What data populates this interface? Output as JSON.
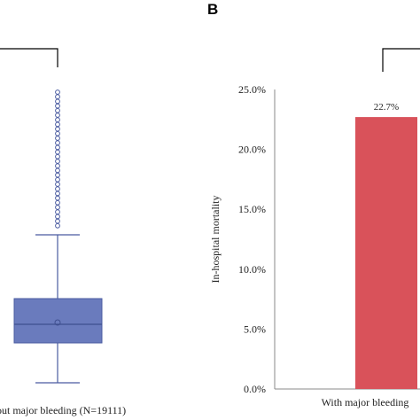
{
  "panel_label_b": "B",
  "chart_data": [
    {
      "type": "box",
      "categories": [
        "out major bleeding (N=19111)"
      ],
      "box": {
        "color": "#6a7bbd",
        "edge_color": "#4a5ba0"
      }
    },
    {
      "type": "bar",
      "ylabel": "In-hospital mortality",
      "yticks": [
        "0.0%",
        "5.0%",
        "10.0%",
        "15.0%",
        "20.0%",
        "25.0%"
      ],
      "ylim": [
        0,
        25
      ],
      "categories": [
        "With major bleeding"
      ],
      "values": [
        22.7
      ],
      "data_labels": [
        "22.7%"
      ],
      "bar_color": "#d9525a",
      "grid": false
    }
  ]
}
